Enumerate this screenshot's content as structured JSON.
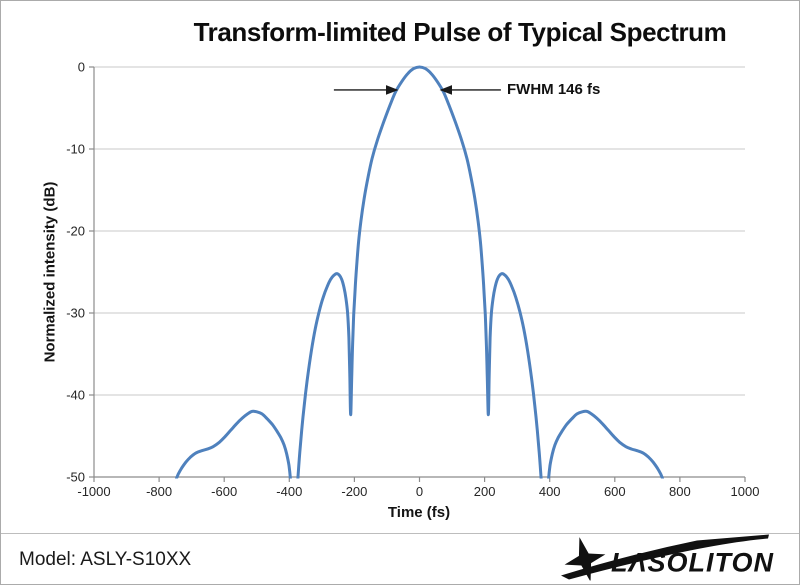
{
  "chart_data": {
    "type": "line",
    "title": "Transform-limited Pulse of Typical Spectrum",
    "xlabel": "Time (fs)",
    "ylabel": "Normalized intensity (dB)",
    "xlim": [
      -1000,
      1000
    ],
    "ylim": [
      -50,
      0
    ],
    "x_ticks": [
      -1000,
      -800,
      -600,
      -400,
      -200,
      0,
      200,
      400,
      600,
      800,
      1000
    ],
    "y_ticks": [
      0,
      -10,
      -20,
      -30,
      -40,
      -50
    ],
    "grid": "horizontal",
    "legend": "none",
    "series": [
      {
        "color": "#4F81BD",
        "symmetric_about_t0": true,
        "points_t_db": [
          [
            0,
            0
          ],
          [
            18,
            -0.2
          ],
          [
            36,
            -0.8
          ],
          [
            55,
            -1.8
          ],
          [
            73,
            -3.0
          ],
          [
            90,
            -4.6
          ],
          [
            110,
            -6.7
          ],
          [
            130,
            -9.0
          ],
          [
            146,
            -11.2
          ],
          [
            158,
            -13.4
          ],
          [
            170,
            -16.0
          ],
          [
            180,
            -18.8
          ],
          [
            187,
            -21.3
          ],
          [
            193,
            -24.2
          ],
          [
            198,
            -27.2
          ],
          [
            202,
            -30.2
          ],
          [
            205,
            -33.2
          ],
          [
            208,
            -37.5
          ],
          [
            211.5,
            -42.4
          ],
          [
            214,
            -37.5
          ],
          [
            217,
            -33.0
          ],
          [
            221,
            -30.0
          ],
          [
            226,
            -28.2
          ],
          [
            232,
            -26.9
          ],
          [
            239,
            -25.9
          ],
          [
            246,
            -25.4
          ],
          [
            254,
            -25.2
          ],
          [
            263,
            -25.4
          ],
          [
            273,
            -25.9
          ],
          [
            284,
            -26.8
          ],
          [
            296,
            -28.1
          ],
          [
            308,
            -29.8
          ],
          [
            320,
            -31.9
          ],
          [
            332,
            -34.6
          ],
          [
            344,
            -37.9
          ],
          [
            354,
            -41.2
          ],
          [
            362,
            -44.3
          ],
          [
            369,
            -47.6
          ],
          [
            375,
            -51.0
          ],
          [
            381,
            -55.0
          ],
          [
            386,
            -56.0
          ],
          [
            391,
            -53.5
          ],
          [
            396,
            -50.5
          ],
          [
            401,
            -48.6
          ],
          [
            408,
            -47.2
          ],
          [
            416,
            -46.1
          ],
          [
            426,
            -45.2
          ],
          [
            438,
            -44.4
          ],
          [
            452,
            -43.6
          ],
          [
            468,
            -42.9
          ],
          [
            484,
            -42.3
          ],
          [
            500,
            -42.05
          ],
          [
            514,
            -42.0
          ],
          [
            528,
            -42.3
          ],
          [
            544,
            -42.8
          ],
          [
            562,
            -43.5
          ],
          [
            580,
            -44.3
          ],
          [
            598,
            -45.1
          ],
          [
            616,
            -45.8
          ],
          [
            634,
            -46.3
          ],
          [
            652,
            -46.6
          ],
          [
            670,
            -46.8
          ],
          [
            688,
            -47.1
          ],
          [
            704,
            -47.6
          ],
          [
            718,
            -48.2
          ],
          [
            732,
            -49.0
          ],
          [
            745,
            -50.0
          ],
          [
            756,
            -51.6
          ],
          [
            762,
            -53.0
          ]
        ]
      }
    ],
    "annotation": {
      "label": "FWHM 146 fs",
      "arrow_y_db": -2.8,
      "arrows": [
        {
          "from_t": -263,
          "to_t": -69
        },
        {
          "from_t": 250,
          "to_t": 66
        }
      ]
    }
  },
  "footer": {
    "model_label": "Model: ASLY-S10XX"
  },
  "logo": {
    "text": "LΛSOLITON",
    "icon": "star-swoosh-icon"
  },
  "colors": {
    "curve": "#4F81BD",
    "grid": "#c9c9c9",
    "axis": "#8c8c8c",
    "tick_text": "#262626",
    "annotation": "#1a1a1a",
    "logo": "#111111"
  }
}
